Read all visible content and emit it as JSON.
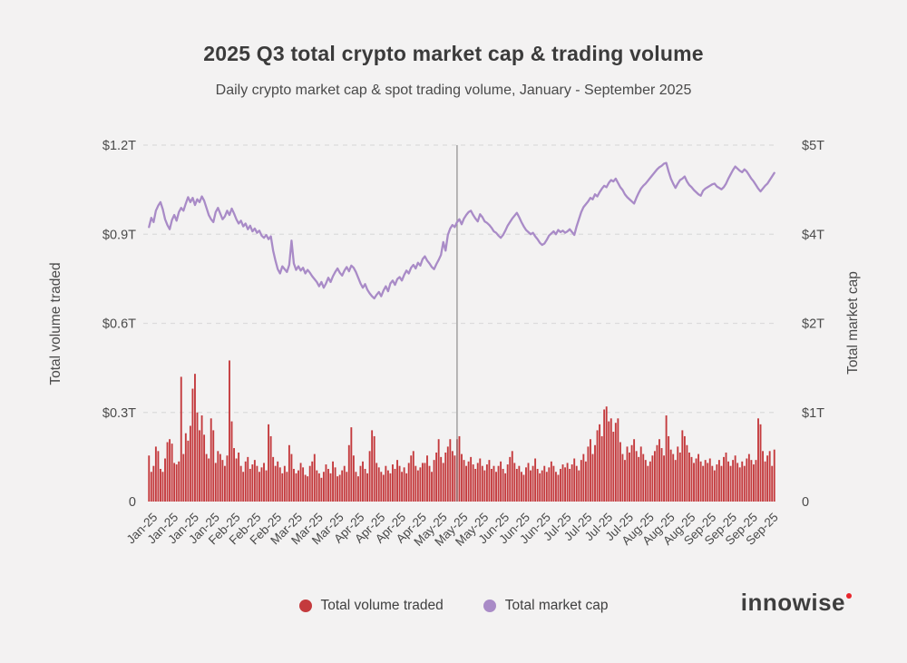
{
  "header": {
    "title": "2025 Q3 total crypto market cap & trading volume",
    "subtitle": "Daily crypto market cap & spot trading volume, January - September 2025"
  },
  "colors": {
    "background": "#f3f2f2",
    "bar": "#c43a3d",
    "line": "#a98bc7",
    "grid": "#dcdbdc",
    "marker_line": "#8e8e8e",
    "tick_text": "#4a4a4a",
    "title_text": "#3b3b3b",
    "logo_text": "#3e3e3e",
    "logo_dot": "#e8262d"
  },
  "legend": {
    "items": [
      {
        "label": "Total volume traded",
        "color": "#c43a3d"
      },
      {
        "label": "Total market cap",
        "color": "#a98bc7"
      }
    ]
  },
  "logo": {
    "text": "innowise"
  },
  "chart_data": {
    "type": "bar",
    "title": "2025 Q3 total crypto market cap & trading volume",
    "subtitle": "Daily crypto market cap & spot trading volume, January - September 2025",
    "grid": "horizontal dashed",
    "legend_position": "bottom center",
    "left_axis": {
      "label": "Total volume traded",
      "range": [
        0,
        1.2
      ],
      "tick_values": [
        0,
        0.3,
        0.6,
        0.9,
        1.2
      ],
      "tick_labels": [
        "0",
        "$0.3T",
        "$0.6T",
        "$0.9T",
        "$1.2T"
      ]
    },
    "right_axis": {
      "label": "Total market cap",
      "range": [
        0,
        5
      ],
      "tick_labels": [
        "0",
        "$1T",
        "$2T",
        "$4T",
        "$5T"
      ]
    },
    "x_ticks": {
      "start_index": 2,
      "interval": 9,
      "labels": [
        "Jan-25",
        "Jan-25",
        "Jan-25",
        "Jan-25",
        "Feb-25",
        "Feb-25",
        "Feb-25",
        "Mar-25",
        "Mar-25",
        "Mar-25",
        "Apr-25",
        "Apr-25",
        "Apr-25",
        "Apr-25",
        "May-25",
        "May-25",
        "May-25",
        "Jun-25",
        "Jun-25",
        "Jun-25",
        "Jul-25",
        "Jul-25",
        "Jul-25",
        "Jul-25",
        "Aug-25",
        "Aug-25",
        "Aug-25",
        "Sep-25",
        "Sep-25",
        "Sep-25",
        "Sep-25"
      ]
    },
    "marker_line_day": 134,
    "series": [
      {
        "name": "Total volume traded",
        "type": "bar",
        "axis": "left",
        "unit": "$T",
        "values": [
          0.155,
          0.1,
          0.12,
          0.185,
          0.17,
          0.11,
          0.1,
          0.145,
          0.2,
          0.21,
          0.195,
          0.13,
          0.125,
          0.135,
          0.42,
          0.16,
          0.23,
          0.205,
          0.255,
          0.38,
          0.43,
          0.3,
          0.24,
          0.29,
          0.225,
          0.16,
          0.145,
          0.28,
          0.24,
          0.13,
          0.17,
          0.16,
          0.14,
          0.12,
          0.155,
          0.475,
          0.27,
          0.18,
          0.145,
          0.165,
          0.12,
          0.1,
          0.135,
          0.15,
          0.11,
          0.125,
          0.14,
          0.12,
          0.1,
          0.115,
          0.13,
          0.105,
          0.26,
          0.22,
          0.15,
          0.12,
          0.135,
          0.115,
          0.095,
          0.12,
          0.1,
          0.19,
          0.16,
          0.11,
          0.095,
          0.105,
          0.13,
          0.115,
          0.09,
          0.085,
          0.12,
          0.135,
          0.16,
          0.105,
          0.095,
          0.08,
          0.1,
          0.125,
          0.11,
          0.095,
          0.135,
          0.115,
          0.085,
          0.09,
          0.105,
          0.12,
          0.1,
          0.19,
          0.25,
          0.155,
          0.1,
          0.085,
          0.12,
          0.135,
          0.11,
          0.095,
          0.17,
          0.24,
          0.22,
          0.13,
          0.115,
          0.1,
          0.09,
          0.12,
          0.105,
          0.095,
          0.125,
          0.11,
          0.14,
          0.12,
          0.1,
          0.115,
          0.095,
          0.13,
          0.155,
          0.17,
          0.12,
          0.105,
          0.115,
          0.13,
          0.13,
          0.155,
          0.12,
          0.1,
          0.14,
          0.165,
          0.21,
          0.15,
          0.13,
          0.165,
          0.185,
          0.21,
          0.17,
          0.155,
          0.21,
          0.22,
          0.16,
          0.14,
          0.12,
          0.135,
          0.15,
          0.125,
          0.11,
          0.13,
          0.145,
          0.12,
          0.105,
          0.125,
          0.14,
          0.11,
          0.12,
          0.1,
          0.12,
          0.135,
          0.11,
          0.095,
          0.125,
          0.15,
          0.17,
          0.13,
          0.11,
          0.12,
          0.1,
          0.09,
          0.115,
          0.13,
          0.105,
          0.12,
          0.145,
          0.11,
          0.095,
          0.105,
          0.12,
          0.1,
          0.115,
          0.135,
          0.12,
          0.1,
          0.09,
          0.11,
          0.125,
          0.115,
          0.13,
          0.11,
          0.125,
          0.145,
          0.12,
          0.105,
          0.14,
          0.16,
          0.135,
          0.185,
          0.21,
          0.16,
          0.19,
          0.24,
          0.26,
          0.22,
          0.31,
          0.32,
          0.27,
          0.28,
          0.235,
          0.265,
          0.28,
          0.2,
          0.16,
          0.14,
          0.185,
          0.165,
          0.19,
          0.21,
          0.17,
          0.15,
          0.185,
          0.16,
          0.14,
          0.12,
          0.135,
          0.155,
          0.17,
          0.19,
          0.21,
          0.18,
          0.155,
          0.29,
          0.22,
          0.175,
          0.16,
          0.14,
          0.185,
          0.165,
          0.24,
          0.22,
          0.19,
          0.165,
          0.15,
          0.13,
          0.145,
          0.16,
          0.135,
          0.12,
          0.14,
          0.13,
          0.145,
          0.12,
          0.105,
          0.125,
          0.14,
          0.12,
          0.15,
          0.165,
          0.135,
          0.12,
          0.14,
          0.155,
          0.13,
          0.115,
          0.135,
          0.12,
          0.145,
          0.16,
          0.14,
          0.125,
          0.14,
          0.28,
          0.26,
          0.17,
          0.135,
          0.155,
          0.17,
          0.12,
          0.175
        ]
      },
      {
        "name": "Total market cap",
        "type": "line",
        "axis": "right",
        "unit": "$T",
        "values": [
          3.85,
          3.98,
          3.92,
          4.08,
          4.15,
          4.2,
          4.1,
          3.96,
          3.88,
          3.82,
          3.95,
          4.02,
          3.94,
          4.06,
          4.12,
          4.08,
          4.18,
          4.27,
          4.2,
          4.26,
          4.16,
          4.24,
          4.2,
          4.28,
          4.22,
          4.12,
          4.02,
          3.96,
          3.92,
          4.06,
          4.12,
          4.04,
          3.96,
          4.0,
          4.08,
          4.02,
          4.11,
          4.04,
          3.96,
          3.9,
          3.94,
          3.86,
          3.9,
          3.82,
          3.87,
          3.79,
          3.83,
          3.77,
          3.8,
          3.73,
          3.7,
          3.74,
          3.68,
          3.72,
          3.52,
          3.38,
          3.26,
          3.2,
          3.3,
          3.26,
          3.22,
          3.32,
          3.66,
          3.34,
          3.25,
          3.3,
          3.24,
          3.28,
          3.2,
          3.25,
          3.21,
          3.16,
          3.12,
          3.08,
          3.02,
          3.08,
          3.0,
          3.06,
          3.14,
          3.08,
          3.16,
          3.22,
          3.27,
          3.21,
          3.17,
          3.24,
          3.29,
          3.23,
          3.31,
          3.28,
          3.22,
          3.14,
          3.06,
          3.0,
          3.05,
          2.97,
          2.92,
          2.88,
          2.85,
          2.9,
          2.94,
          2.88,
          2.96,
          3.02,
          2.95,
          3.06,
          3.1,
          3.04,
          3.12,
          3.15,
          3.1,
          3.18,
          3.24,
          3.2,
          3.28,
          3.32,
          3.27,
          3.35,
          3.31,
          3.4,
          3.44,
          3.38,
          3.34,
          3.29,
          3.26,
          3.33,
          3.39,
          3.46,
          3.64,
          3.52,
          3.74,
          3.83,
          3.88,
          3.85,
          3.92,
          3.96,
          3.89,
          3.97,
          4.02,
          4.06,
          4.08,
          4.02,
          3.97,
          3.93,
          4.03,
          3.99,
          3.93,
          3.91,
          3.88,
          3.84,
          3.79,
          3.77,
          3.73,
          3.7,
          3.74,
          3.8,
          3.87,
          3.92,
          3.97,
          4.01,
          4.05,
          3.99,
          3.92,
          3.86,
          3.81,
          3.78,
          3.75,
          3.77,
          3.72,
          3.68,
          3.63,
          3.6,
          3.62,
          3.67,
          3.73,
          3.76,
          3.79,
          3.75,
          3.81,
          3.78,
          3.8,
          3.77,
          3.79,
          3.82,
          3.78,
          3.74,
          3.86,
          3.96,
          4.06,
          4.13,
          4.17,
          4.21,
          4.26,
          4.24,
          4.31,
          4.28,
          4.34,
          4.39,
          4.43,
          4.41,
          4.47,
          4.51,
          4.49,
          4.53,
          4.47,
          4.41,
          4.37,
          4.31,
          4.27,
          4.24,
          4.21,
          4.18,
          4.26,
          4.33,
          4.39,
          4.43,
          4.46,
          4.5,
          4.54,
          4.58,
          4.62,
          4.66,
          4.69,
          4.71,
          4.74,
          4.75,
          4.63,
          4.53,
          4.46,
          4.4,
          4.46,
          4.51,
          4.53,
          4.56,
          4.49,
          4.44,
          4.41,
          4.37,
          4.34,
          4.31,
          4.29,
          4.36,
          4.39,
          4.41,
          4.43,
          4.45,
          4.46,
          4.42,
          4.4,
          4.38,
          4.41,
          4.46,
          4.53,
          4.59,
          4.65,
          4.7,
          4.67,
          4.64,
          4.62,
          4.66,
          4.63,
          4.58,
          4.53,
          4.49,
          4.44,
          4.39,
          4.35,
          4.39,
          4.43,
          4.46,
          4.51,
          4.56,
          4.61
        ]
      }
    ]
  }
}
